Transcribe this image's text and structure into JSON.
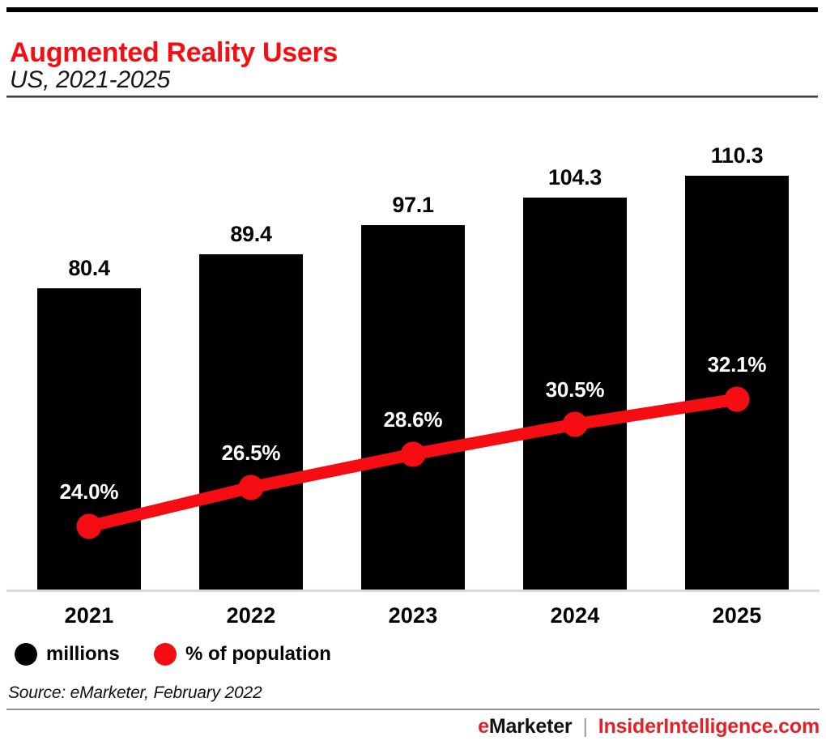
{
  "page": {
    "footer": {
      "brand_e": "e",
      "brand_rest": "Marketer",
      "separator": "|",
      "site": "InsiderIntelligence.com"
    }
  },
  "chart_data": {
    "type": "combo",
    "title": "Augmented Reality Users",
    "subtitle": "US, 2021-2025",
    "categories": [
      "2021",
      "2022",
      "2023",
      "2024",
      "2025"
    ],
    "series": [
      {
        "name": "millions",
        "type": "bar",
        "color": "#000000",
        "values": [
          80.4,
          89.4,
          97.1,
          104.3,
          110.3
        ],
        "labels": [
          "80.4",
          "89.4",
          "97.1",
          "104.3",
          "110.3"
        ]
      },
      {
        "name": "% of population",
        "type": "line",
        "color": "#f60d13",
        "values": [
          24.0,
          26.5,
          28.6,
          30.5,
          32.1
        ],
        "labels": [
          "24.0%",
          "26.5%",
          "28.6%",
          "30.5%",
          "32.1%"
        ]
      }
    ],
    "source": "Source: eMarketer, February 2022",
    "legend_position": "bottom-left",
    "gridlines": false,
    "y_axis_hidden": true,
    "data_labels": true,
    "ylim_bars": [
      0,
      120
    ]
  },
  "colors": {
    "accent_red": "#f60d13",
    "footer_red": "#e32128",
    "bar_black": "#000000",
    "baseline_gray": "#d5dae5",
    "top_bar_black": "#000000"
  }
}
